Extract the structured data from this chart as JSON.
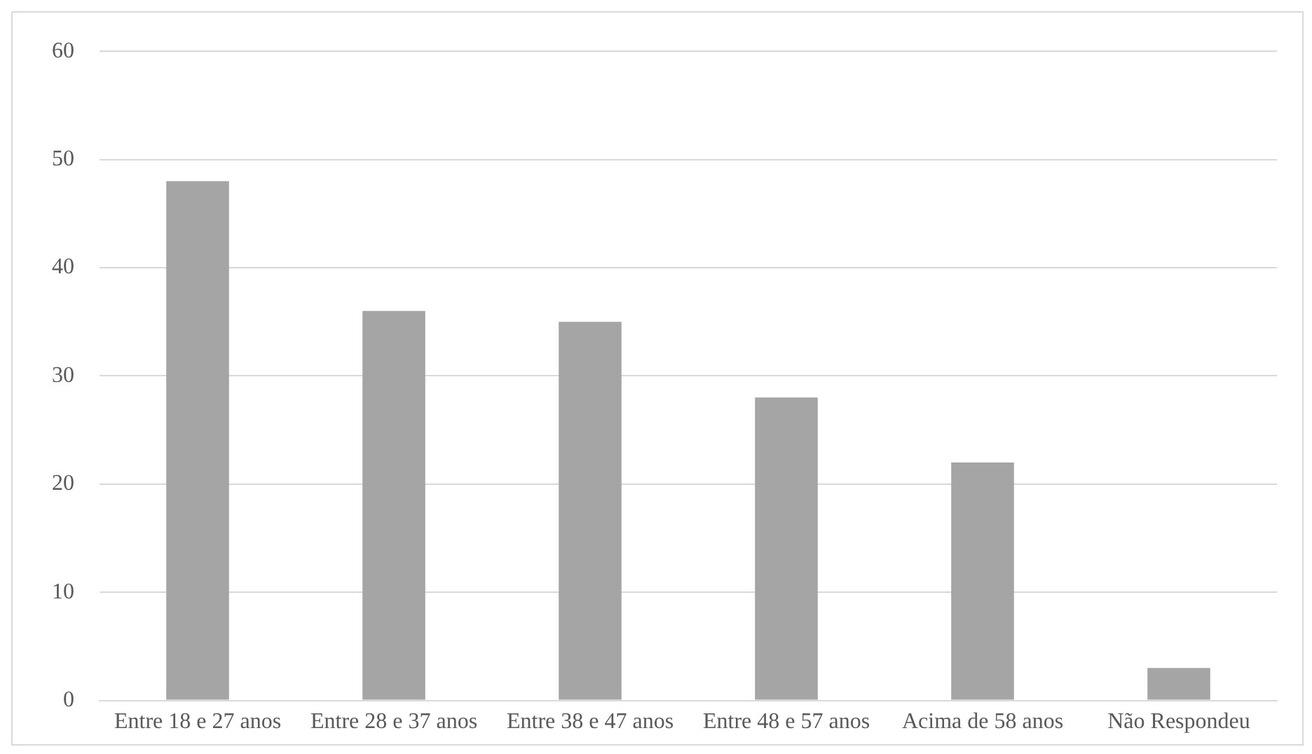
{
  "chart_data": {
    "type": "bar",
    "categories": [
      "Entre 18 e 27 anos",
      "Entre 28 e 37 anos",
      "Entre 38 e 47 anos",
      "Entre 48 e 57 anos",
      "Acima de 58 anos",
      "Não Respondeu"
    ],
    "values": [
      48,
      36,
      35,
      28,
      22,
      3
    ],
    "color": "#a5a5a5",
    "ylim": [
      0,
      60
    ],
    "yticks": [
      0,
      10,
      20,
      30,
      40,
      50,
      60
    ],
    "grid": "y"
  }
}
